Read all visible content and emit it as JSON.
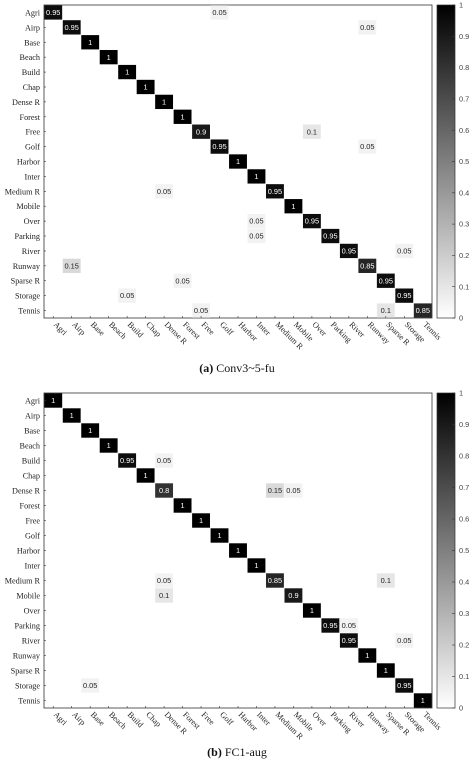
{
  "chart_data": [
    {
      "type": "heatmap",
      "caption_label": "(a)",
      "caption_text": "Conv3~5-fu",
      "categories": [
        "Agri",
        "Airp",
        "Base",
        "Beach",
        "Build",
        "Chap",
        "Dense R",
        "Forest",
        "Free",
        "Golf",
        "Harbor",
        "Inter",
        "Medium R",
        "Mobile",
        "Over",
        "Parking",
        "River",
        "Runway",
        "Sparse R",
        "Storage",
        "Tennis"
      ],
      "colorbar": {
        "min": 0,
        "max": 1,
        "ticks": [
          "0",
          "0.1",
          "0.2",
          "0.3",
          "0.4",
          "0.5",
          "0.6",
          "0.7",
          "0.8",
          "0.9",
          "1"
        ]
      },
      "cells": [
        {
          "row": 0,
          "col": 0,
          "v": 0.95
        },
        {
          "row": 0,
          "col": 9,
          "v": 0.05
        },
        {
          "row": 1,
          "col": 1,
          "v": 0.95
        },
        {
          "row": 1,
          "col": 17,
          "v": 0.05
        },
        {
          "row": 2,
          "col": 2,
          "v": 1
        },
        {
          "row": 3,
          "col": 3,
          "v": 1
        },
        {
          "row": 4,
          "col": 4,
          "v": 1
        },
        {
          "row": 5,
          "col": 5,
          "v": 1
        },
        {
          "row": 6,
          "col": 6,
          "v": 1
        },
        {
          "row": 7,
          "col": 7,
          "v": 1
        },
        {
          "row": 8,
          "col": 8,
          "v": 0.9
        },
        {
          "row": 8,
          "col": 14,
          "v": 0.1
        },
        {
          "row": 9,
          "col": 9,
          "v": 0.95
        },
        {
          "row": 9,
          "col": 17,
          "v": 0.05
        },
        {
          "row": 10,
          "col": 10,
          "v": 1
        },
        {
          "row": 11,
          "col": 11,
          "v": 1
        },
        {
          "row": 12,
          "col": 6,
          "v": 0.05
        },
        {
          "row": 12,
          "col": 12,
          "v": 0.95
        },
        {
          "row": 13,
          "col": 13,
          "v": 1
        },
        {
          "row": 14,
          "col": 11,
          "v": 0.05
        },
        {
          "row": 14,
          "col": 14,
          "v": 0.95
        },
        {
          "row": 15,
          "col": 11,
          "v": 0.05
        },
        {
          "row": 15,
          "col": 15,
          "v": 0.95
        },
        {
          "row": 16,
          "col": 16,
          "v": 0.95
        },
        {
          "row": 16,
          "col": 19,
          "v": 0.05
        },
        {
          "row": 17,
          "col": 1,
          "v": 0.15
        },
        {
          "row": 17,
          "col": 17,
          "v": 0.85
        },
        {
          "row": 18,
          "col": 7,
          "v": 0.05
        },
        {
          "row": 18,
          "col": 18,
          "v": 0.95
        },
        {
          "row": 19,
          "col": 4,
          "v": 0.05
        },
        {
          "row": 19,
          "col": 19,
          "v": 0.95
        },
        {
          "row": 20,
          "col": 8,
          "v": 0.05
        },
        {
          "row": 20,
          "col": 18,
          "v": 0.1
        },
        {
          "row": 20,
          "col": 20,
          "v": 0.85
        }
      ]
    },
    {
      "type": "heatmap",
      "caption_label": "(b)",
      "caption_text": "FC1-aug",
      "categories": [
        "Agri",
        "Airp",
        "Base",
        "Beach",
        "Build",
        "Chap",
        "Dense R",
        "Forest",
        "Free",
        "Golf",
        "Harbor",
        "Inter",
        "Medium R",
        "Mobile",
        "Over",
        "Parking",
        "River",
        "Runway",
        "Sparse R",
        "Storage",
        "Tennis"
      ],
      "colorbar": {
        "min": 0,
        "max": 1,
        "ticks": [
          "0",
          "0.1",
          "0.2",
          "0.3",
          "0.4",
          "0.5",
          "0.6",
          "0.7",
          "0.8",
          "0.9",
          "1"
        ]
      },
      "cells": [
        {
          "row": 0,
          "col": 0,
          "v": 1
        },
        {
          "row": 1,
          "col": 1,
          "v": 1
        },
        {
          "row": 2,
          "col": 2,
          "v": 1
        },
        {
          "row": 3,
          "col": 3,
          "v": 1
        },
        {
          "row": 4,
          "col": 4,
          "v": 0.95
        },
        {
          "row": 4,
          "col": 6,
          "v": 0.05
        },
        {
          "row": 5,
          "col": 5,
          "v": 1
        },
        {
          "row": 6,
          "col": 6,
          "v": 0.8
        },
        {
          "row": 6,
          "col": 12,
          "v": 0.15
        },
        {
          "row": 6,
          "col": 13,
          "v": 0.05
        },
        {
          "row": 7,
          "col": 7,
          "v": 1
        },
        {
          "row": 8,
          "col": 8,
          "v": 1
        },
        {
          "row": 9,
          "col": 9,
          "v": 1
        },
        {
          "row": 10,
          "col": 10,
          "v": 1
        },
        {
          "row": 11,
          "col": 11,
          "v": 1
        },
        {
          "row": 12,
          "col": 6,
          "v": 0.05
        },
        {
          "row": 12,
          "col": 12,
          "v": 0.85
        },
        {
          "row": 12,
          "col": 18,
          "v": 0.1
        },
        {
          "row": 13,
          "col": 6,
          "v": 0.1
        },
        {
          "row": 13,
          "col": 13,
          "v": 0.9
        },
        {
          "row": 14,
          "col": 14,
          "v": 1
        },
        {
          "row": 15,
          "col": 15,
          "v": 0.95
        },
        {
          "row": 15,
          "col": 16,
          "v": 0.05
        },
        {
          "row": 16,
          "col": 16,
          "v": 0.95
        },
        {
          "row": 16,
          "col": 19,
          "v": 0.05
        },
        {
          "row": 17,
          "col": 17,
          "v": 1
        },
        {
          "row": 18,
          "col": 18,
          "v": 1
        },
        {
          "row": 19,
          "col": 2,
          "v": 0.05
        },
        {
          "row": 19,
          "col": 19,
          "v": 0.95
        },
        {
          "row": 20,
          "col": 20,
          "v": 1
        }
      ]
    }
  ]
}
